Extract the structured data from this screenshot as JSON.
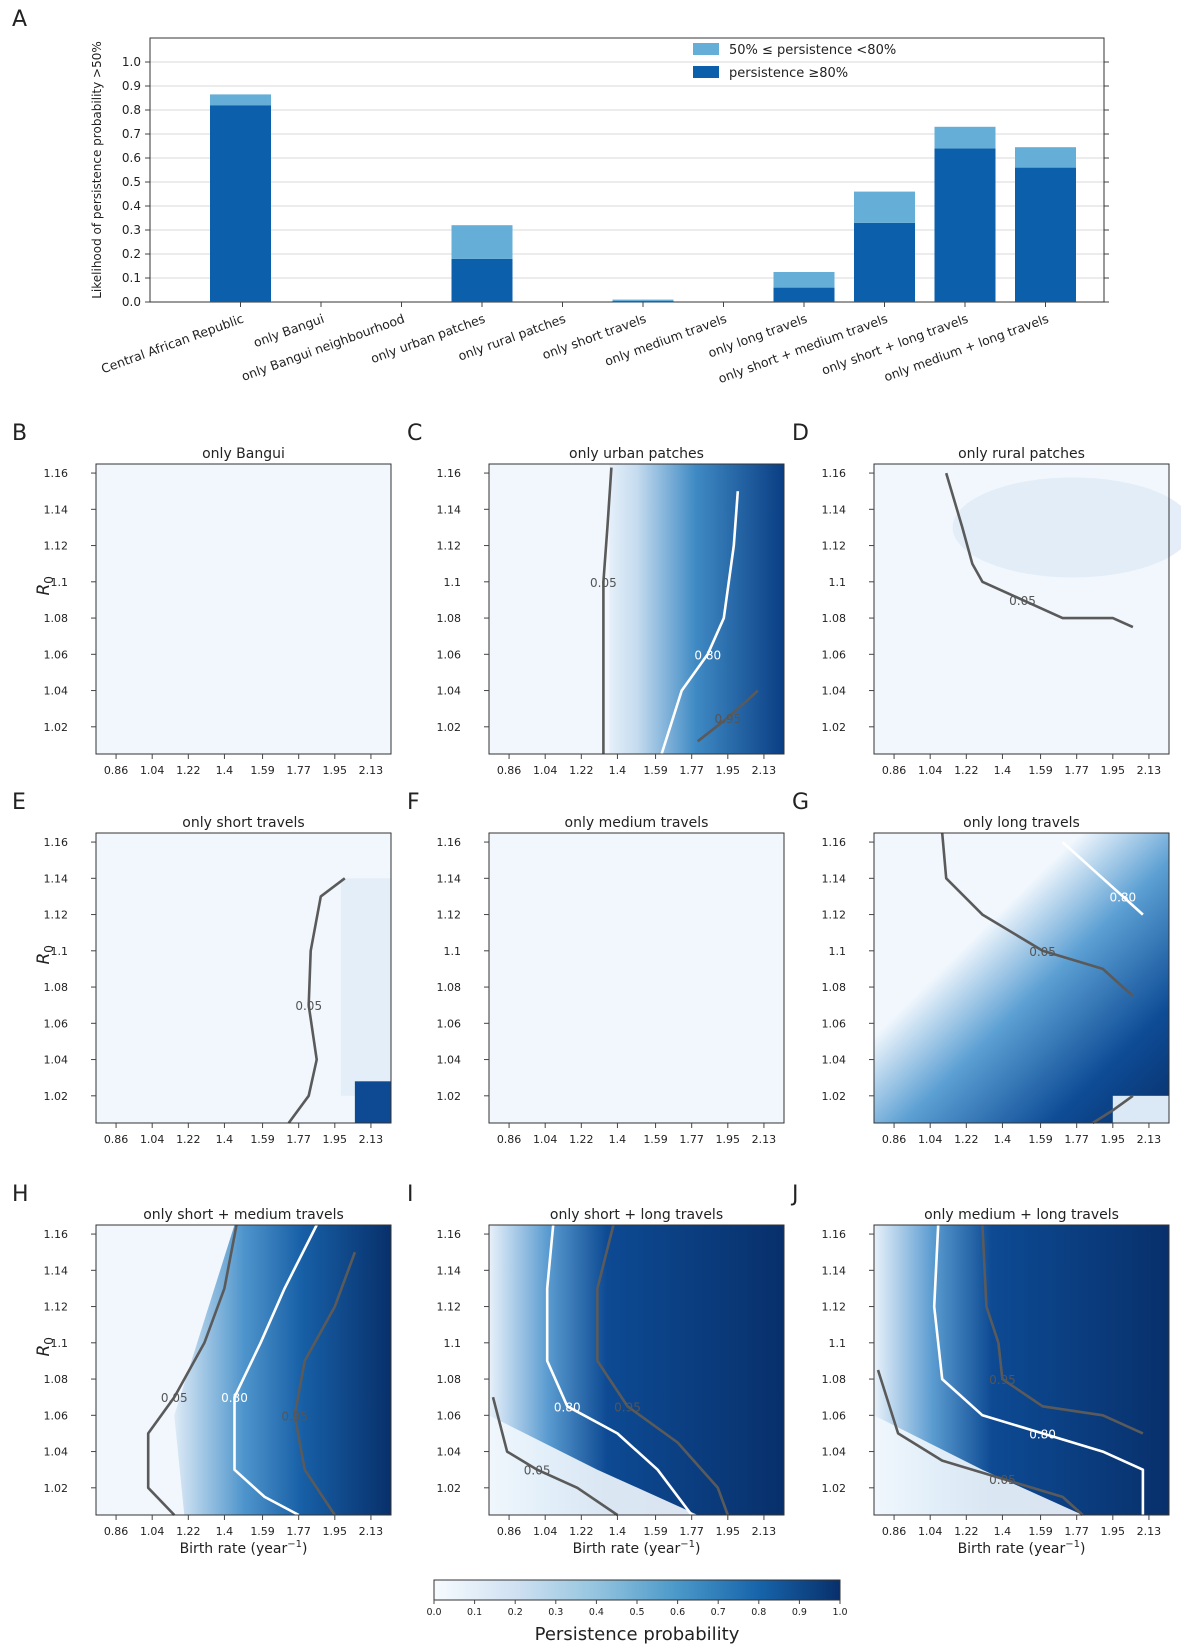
{
  "chart_data": [
    {
      "panel": "A",
      "type": "bar",
      "ylabel": "Likelihood of persistence probability >50%",
      "ylim": [
        0,
        1.1
      ],
      "yticks": [
        "0.0",
        "0.1",
        "0.2",
        "0.3",
        "0.4",
        "0.5",
        "0.6",
        "0.7",
        "0.8",
        "0.9",
        "1.0"
      ],
      "categories": [
        "Central African Republic",
        "only Bangui",
        "only Bangui neighbourhood",
        "only urban patches",
        "only rural patches",
        "only short travels",
        "only medium travels",
        "only long travels",
        "only short + medium travels",
        "only short + long travels",
        "only medium + long travels"
      ],
      "series": [
        {
          "name": "persistence ≥80%",
          "color": "#0c5fab",
          "values": [
            0.82,
            0,
            0,
            0.18,
            0,
            0.005,
            0,
            0.06,
            0.33,
            0.64,
            0.56
          ]
        },
        {
          "name": "50% ≤ persistence <80%",
          "color": "#64aed8",
          "values": [
            0.045,
            0,
            0,
            0.14,
            0,
            0.005,
            0,
            0.065,
            0.13,
            0.09,
            0.085
          ]
        }
      ],
      "legend": "top-right"
    },
    {
      "panel": "B",
      "type": "heatmap",
      "title": "only Bangui",
      "ylabel": "R0",
      "xlabel": "",
      "xticks": [
        "0.86",
        "1.04",
        "1.22",
        "1.4",
        "1.59",
        "1.77",
        "1.95",
        "2.13"
      ],
      "yticks": [
        "1.02",
        "1.04",
        "1.06",
        "1.08",
        "1.1",
        "1.12",
        "1.14",
        "1.16"
      ],
      "x_range": [
        0.76,
        2.23
      ],
      "y_range": [
        1.005,
        1.165
      ],
      "contours": []
    },
    {
      "panel": "C",
      "type": "heatmap",
      "title": "only urban patches",
      "xticks": [
        "0.86",
        "1.04",
        "1.22",
        "1.4",
        "1.59",
        "1.77",
        "1.95",
        "2.13"
      ],
      "yticks": [
        "1.02",
        "1.04",
        "1.06",
        "1.08",
        "1.1",
        "1.12",
        "1.14",
        "1.16"
      ],
      "x_range": [
        0.76,
        2.23
      ],
      "y_range": [
        1.005,
        1.165
      ],
      "contours": [
        {
          "level": "0.05",
          "points": [
            [
              1.37,
              1.163
            ],
            [
              1.35,
              1.13
            ],
            [
              1.33,
              1.1
            ],
            [
              1.33,
              1.06
            ],
            [
              1.33,
              1.005
            ]
          ]
        },
        {
          "level": "0.80",
          "points": [
            [
              2.0,
              1.15
            ],
            [
              1.98,
              1.12
            ],
            [
              1.93,
              1.08
            ],
            [
              1.85,
              1.06
            ],
            [
              1.72,
              1.04
            ],
            [
              1.62,
              1.005
            ]
          ]
        },
        {
          "level": "0.95",
          "points": [
            [
              2.1,
              1.04
            ],
            [
              1.95,
              1.025
            ],
            [
              1.8,
              1.012
            ]
          ]
        }
      ]
    },
    {
      "panel": "D",
      "type": "heatmap",
      "title": "only rural patches",
      "xticks": [
        "0.86",
        "1.04",
        "1.22",
        "1.4",
        "1.59",
        "1.77",
        "1.95",
        "2.13"
      ],
      "yticks": [
        "1.02",
        "1.04",
        "1.06",
        "1.08",
        "1.1",
        "1.12",
        "1.14",
        "1.16"
      ],
      "x_range": [
        0.76,
        2.23
      ],
      "y_range": [
        1.005,
        1.165
      ],
      "contours": [
        {
          "level": "0.05",
          "points": [
            [
              1.12,
              1.16
            ],
            [
              1.2,
              1.13
            ],
            [
              1.25,
              1.11
            ],
            [
              1.3,
              1.1
            ],
            [
              1.5,
              1.09
            ],
            [
              1.7,
              1.08
            ],
            [
              1.95,
              1.08
            ],
            [
              2.05,
              1.075
            ]
          ]
        }
      ]
    },
    {
      "panel": "E",
      "type": "heatmap",
      "title": "only short travels",
      "ylabel": "R0",
      "xticks": [
        "0.86",
        "1.04",
        "1.22",
        "1.4",
        "1.59",
        "1.77",
        "1.95",
        "2.13"
      ],
      "yticks": [
        "1.02",
        "1.04",
        "1.06",
        "1.08",
        "1.1",
        "1.12",
        "1.14",
        "1.16"
      ],
      "x_range": [
        0.76,
        2.23
      ],
      "y_range": [
        1.005,
        1.165
      ],
      "contours": [
        {
          "level": "0.05",
          "points": [
            [
              2.0,
              1.14
            ],
            [
              1.88,
              1.13
            ],
            [
              1.83,
              1.1
            ],
            [
              1.82,
              1.07
            ],
            [
              1.86,
              1.04
            ],
            [
              1.82,
              1.02
            ],
            [
              1.72,
              1.005
            ]
          ]
        }
      ]
    },
    {
      "panel": "F",
      "type": "heatmap",
      "title": "only medium travels",
      "xticks": [
        "0.86",
        "1.04",
        "1.22",
        "1.4",
        "1.59",
        "1.77",
        "1.95",
        "2.13"
      ],
      "yticks": [
        "1.02",
        "1.04",
        "1.06",
        "1.08",
        "1.1",
        "1.12",
        "1.14",
        "1.16"
      ],
      "x_range": [
        0.76,
        2.23
      ],
      "y_range": [
        1.005,
        1.165
      ],
      "contours": []
    },
    {
      "panel": "G",
      "type": "heatmap",
      "title": "only long travels",
      "xticks": [
        "0.86",
        "1.04",
        "1.22",
        "1.4",
        "1.59",
        "1.77",
        "1.95",
        "2.13"
      ],
      "yticks": [
        "1.02",
        "1.04",
        "1.06",
        "1.08",
        "1.1",
        "1.12",
        "1.14",
        "1.16"
      ],
      "x_range": [
        0.76,
        2.23
      ],
      "y_range": [
        1.005,
        1.165
      ],
      "contours": [
        {
          "level": "0.05",
          "points": [
            [
              1.1,
              1.165
            ],
            [
              1.12,
              1.14
            ],
            [
              1.3,
              1.12
            ],
            [
              1.6,
              1.1
            ],
            [
              1.9,
              1.09
            ],
            [
              2.05,
              1.075
            ]
          ]
        },
        {
          "level": "0.80",
          "points": [
            [
              1.7,
              1.16
            ],
            [
              1.85,
              1.145
            ],
            [
              2.0,
              1.13
            ],
            [
              2.1,
              1.12
            ]
          ]
        },
        {
          "level": "",
          "points": [
            [
              1.85,
              1.005
            ],
            [
              1.95,
              1.012
            ],
            [
              2.05,
              1.02
            ]
          ]
        }
      ]
    },
    {
      "panel": "H",
      "type": "heatmap",
      "title": "only short + medium travels",
      "ylabel": "R0",
      "xlabel": "Birth rate (year−1)",
      "xticks": [
        "0.86",
        "1.04",
        "1.22",
        "1.4",
        "1.59",
        "1.77",
        "1.95",
        "2.13"
      ],
      "yticks": [
        "1.02",
        "1.04",
        "1.06",
        "1.08",
        "1.1",
        "1.12",
        "1.14",
        "1.16"
      ],
      "x_range": [
        0.76,
        2.23
      ],
      "y_range": [
        1.005,
        1.165
      ],
      "contours": [
        {
          "level": "0.05",
          "points": [
            [
              1.46,
              1.165
            ],
            [
              1.4,
              1.13
            ],
            [
              1.3,
              1.1
            ],
            [
              1.15,
              1.07
            ],
            [
              1.02,
              1.05
            ],
            [
              1.02,
              1.02
            ],
            [
              1.15,
              1.005
            ]
          ]
        },
        {
          "level": "0.80",
          "points": [
            [
              1.86,
              1.165
            ],
            [
              1.7,
              1.13
            ],
            [
              1.58,
              1.1
            ],
            [
              1.45,
              1.07
            ],
            [
              1.45,
              1.03
            ],
            [
              1.6,
              1.015
            ],
            [
              1.77,
              1.005
            ]
          ]
        },
        {
          "level": "0.95",
          "points": [
            [
              2.05,
              1.15
            ],
            [
              1.95,
              1.12
            ],
            [
              1.8,
              1.09
            ],
            [
              1.75,
              1.06
            ],
            [
              1.8,
              1.03
            ],
            [
              1.95,
              1.005
            ]
          ]
        }
      ]
    },
    {
      "panel": "I",
      "type": "heatmap",
      "title": "only short + long travels",
      "xlabel": "Birth rate (year−1)",
      "xticks": [
        "0.86",
        "1.04",
        "1.22",
        "1.4",
        "1.59",
        "1.77",
        "1.95",
        "2.13"
      ],
      "yticks": [
        "1.02",
        "1.04",
        "1.06",
        "1.08",
        "1.1",
        "1.12",
        "1.14",
        "1.16"
      ],
      "x_range": [
        0.76,
        2.23
      ],
      "y_range": [
        1.005,
        1.165
      ],
      "contours": [
        {
          "level": "0.05",
          "points": [
            [
              0.78,
              1.07
            ],
            [
              0.85,
              1.04
            ],
            [
              1.0,
              1.03
            ],
            [
              1.2,
              1.02
            ],
            [
              1.4,
              1.005
            ]
          ]
        },
        {
          "level": "0.80",
          "points": [
            [
              1.08,
              1.165
            ],
            [
              1.05,
              1.13
            ],
            [
              1.05,
              1.09
            ],
            [
              1.15,
              1.065
            ],
            [
              1.4,
              1.05
            ],
            [
              1.6,
              1.03
            ],
            [
              1.77,
              1.005
            ]
          ]
        },
        {
          "level": "0.95",
          "points": [
            [
              1.38,
              1.165
            ],
            [
              1.3,
              1.13
            ],
            [
              1.3,
              1.09
            ],
            [
              1.45,
              1.065
            ],
            [
              1.7,
              1.045
            ],
            [
              1.9,
              1.02
            ],
            [
              1.95,
              1.005
            ]
          ]
        }
      ]
    },
    {
      "panel": "J",
      "type": "heatmap",
      "title": "only medium + long travels",
      "xlabel": "Birth rate (year−1)",
      "xticks": [
        "0.86",
        "1.04",
        "1.22",
        "1.4",
        "1.59",
        "1.77",
        "1.95",
        "2.13"
      ],
      "yticks": [
        "1.02",
        "1.04",
        "1.06",
        "1.08",
        "1.1",
        "1.12",
        "1.14",
        "1.16"
      ],
      "x_range": [
        0.76,
        2.23
      ],
      "y_range": [
        1.005,
        1.165
      ],
      "contours": [
        {
          "level": "0.05",
          "points": [
            [
              0.78,
              1.085
            ],
            [
              0.88,
              1.05
            ],
            [
              1.1,
              1.035
            ],
            [
              1.4,
              1.025
            ],
            [
              1.7,
              1.015
            ],
            [
              1.8,
              1.005
            ]
          ]
        },
        {
          "level": "0.80",
          "points": [
            [
              1.08,
              1.165
            ],
            [
              1.06,
              1.12
            ],
            [
              1.1,
              1.08
            ],
            [
              1.3,
              1.06
            ],
            [
              1.6,
              1.05
            ],
            [
              1.9,
              1.04
            ],
            [
              2.1,
              1.03
            ],
            [
              2.1,
              1.005
            ]
          ]
        },
        {
          "level": "0.95",
          "points": [
            [
              1.3,
              1.165
            ],
            [
              1.32,
              1.12
            ],
            [
              1.38,
              1.1
            ],
            [
              1.4,
              1.08
            ],
            [
              1.6,
              1.065
            ],
            [
              1.9,
              1.06
            ],
            [
              2.1,
              1.05
            ]
          ]
        }
      ]
    }
  ],
  "panel_letters": [
    "A",
    "B",
    "C",
    "D",
    "E",
    "F",
    "G",
    "H",
    "I",
    "J"
  ],
  "colorbar": {
    "label": "Persistence probability",
    "ticks": [
      "0.0",
      "0.1",
      "0.2",
      "0.3",
      "0.4",
      "0.5",
      "0.6",
      "0.7",
      "0.8",
      "0.9",
      "1.0"
    ],
    "colors": [
      "#f7fbff",
      "#08306b"
    ]
  },
  "ylabel_R0": "R",
  "ylabel_R0_sub": "0"
}
